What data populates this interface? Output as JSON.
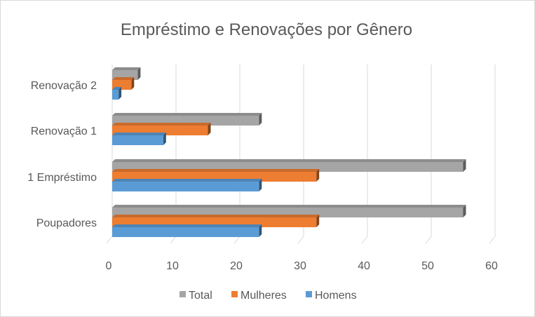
{
  "chart_data": {
    "type": "bar",
    "orientation": "horizontal",
    "style": "3d-clustered",
    "title": "Empréstimo e Renovações por Gênero",
    "categories": [
      "Poupadores",
      "1 Empréstimo",
      "Renovação 1",
      "Renovação 2"
    ],
    "series": [
      {
        "name": "Homens",
        "values": [
          23,
          23,
          8,
          1
        ],
        "color": "#5b9bd5"
      },
      {
        "name": "Mulheres",
        "values": [
          32,
          32,
          15,
          3
        ],
        "color": "#ed7d31"
      },
      {
        "name": "Total",
        "values": [
          55,
          55,
          23,
          4
        ],
        "color": "#a5a5a5"
      }
    ],
    "xlim": [
      0,
      60
    ],
    "xticks": [
      0,
      10,
      20,
      30,
      40,
      50,
      60
    ],
    "grid": true,
    "legend": {
      "position": "bottom",
      "order": [
        "Total",
        "Mulheres",
        "Homens"
      ]
    }
  }
}
